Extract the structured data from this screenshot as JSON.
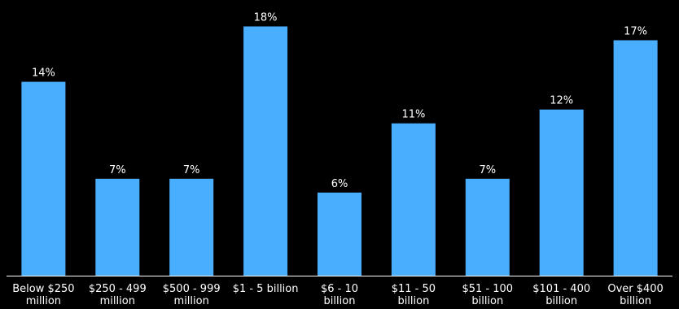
{
  "chart_data": {
    "type": "bar",
    "title": "",
    "xlabel": "",
    "ylabel": "",
    "ylim": [
      0,
      18.5
    ],
    "grid": false,
    "legend": "none",
    "categories": [
      [
        "Below $250",
        "million"
      ],
      [
        "$250 - 499",
        "million"
      ],
      [
        "$500 - 999",
        "million"
      ],
      [
        "$1 - 5 billion"
      ],
      [
        "$6 - 10",
        "billion"
      ],
      [
        "$11 - 50",
        "billion"
      ],
      [
        "$51 - 100",
        "billion"
      ],
      [
        "$101 - 400",
        "billion"
      ],
      [
        "Over $400",
        "billion"
      ]
    ],
    "values": [
      14,
      7,
      7,
      18,
      6,
      11,
      7,
      12,
      17
    ],
    "value_labels": [
      "14%",
      "7%",
      "7%",
      "18%",
      "6%",
      "11%",
      "7%",
      "12%",
      "17%"
    ],
    "colors": {
      "bar": "#4aaeff",
      "background": "#000000",
      "axis": "#ffffff",
      "text": "#ffffff"
    }
  }
}
